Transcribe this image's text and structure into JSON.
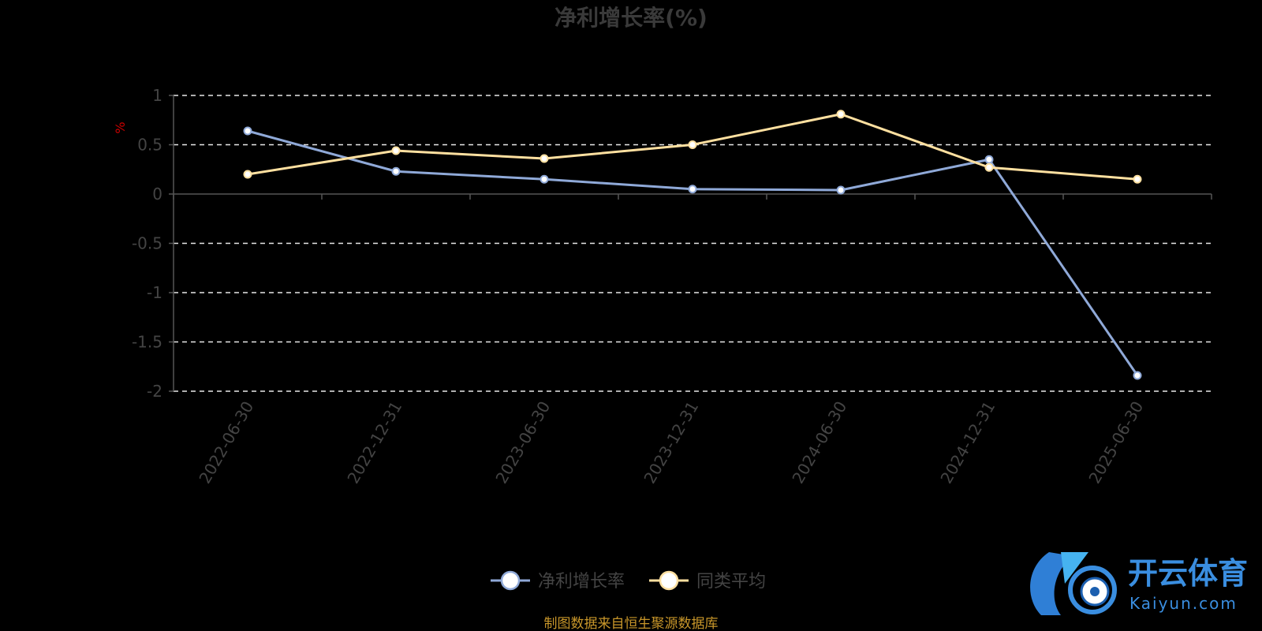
{
  "chart_data": {
    "type": "line",
    "title": "净利增长率(%)",
    "ylabel": "%",
    "categories": [
      "2022-06-30",
      "2022-12-31",
      "2023-06-30",
      "2023-12-31",
      "2024-06-30",
      "2024-12-31",
      "2025-06-30"
    ],
    "series": [
      {
        "name": "净利增长率",
        "values": [
          0.64,
          0.23,
          0.15,
          0.05,
          0.04,
          0.35,
          -1.84
        ],
        "color": "#8fa9d8"
      },
      {
        "name": "同类平均",
        "values": [
          0.2,
          0.44,
          0.36,
          0.5,
          0.81,
          0.27,
          0.15
        ],
        "color": "#ffe0a0"
      }
    ],
    "ylim": [
      -2,
      1
    ],
    "yticks": [
      1,
      0.5,
      0,
      -0.5,
      -1,
      -1.5,
      -2
    ],
    "ytick_labels": [
      "1",
      "0.5",
      "0",
      "-0.5",
      "-1",
      "-1.5",
      "-2"
    ],
    "grid": true,
    "legend_position": "bottom-center"
  },
  "source_note": "制图数据来自恒生聚源数据库",
  "watermark": {
    "brand": "开云体育",
    "domain": "Kaiyun.com"
  }
}
